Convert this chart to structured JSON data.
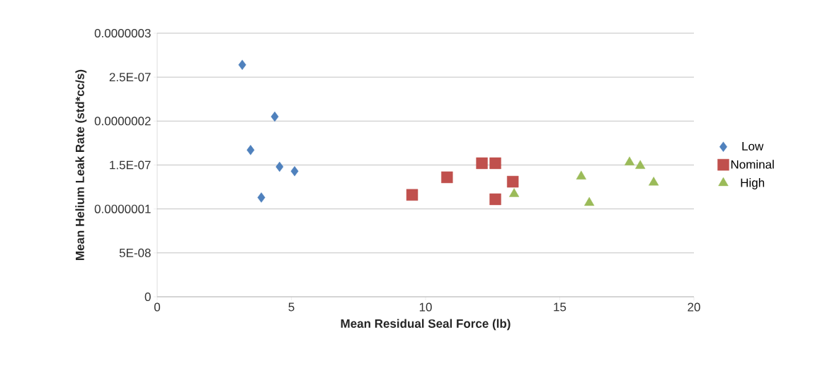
{
  "chart_data": {
    "type": "scatter",
    "xlabel": "Mean Residual Seal Force (lb)",
    "ylabel": "Mean Helium Leak Rate (std*cc/s)",
    "xlim": [
      0,
      20
    ],
    "xticks": [
      0,
      5,
      10,
      15,
      20
    ],
    "ylim": [
      0,
      3e-07
    ],
    "yticks": [
      0,
      {
        "value": 5e-08,
        "label": "5E-08"
      },
      {
        "value": 1e-07,
        "label": "0.0000001"
      },
      {
        "value": 1.5e-07,
        "label": "1.5E-07"
      },
      {
        "value": 2e-07,
        "label": "0.0000002"
      },
      {
        "value": 2.5e-07,
        "label": "2.5E-07"
      },
      {
        "value": 3e-07,
        "label": "0.0000003"
      }
    ],
    "grid": "y",
    "legend": "right",
    "series": [
      {
        "name": "Low",
        "color": "#4f81bd",
        "marker": "diamond",
        "x": [
          3.17,
          4.38,
          3.48,
          4.56,
          5.12,
          3.88
        ],
        "values": [
          2.64e-07,
          2.05e-07,
          1.67e-07,
          1.48e-07,
          1.43e-07,
          1.13e-07
        ]
      },
      {
        "name": "Nominal",
        "color": "#c0504d",
        "marker": "square",
        "x": [
          9.5,
          10.8,
          12.1,
          12.6,
          13.25,
          12.6
        ],
        "values": [
          1.16e-07,
          1.36e-07,
          1.52e-07,
          1.52e-07,
          1.31e-07,
          1.11e-07
        ]
      },
      {
        "name": "High",
        "color": "#9bbb59",
        "marker": "triangle",
        "x": [
          13.3,
          15.8,
          16.1,
          17.6,
          18.0,
          18.5
        ],
        "values": [
          1.17e-07,
          1.37e-07,
          1.07e-07,
          1.53e-07,
          1.49e-07,
          1.3e-07
        ]
      }
    ]
  }
}
